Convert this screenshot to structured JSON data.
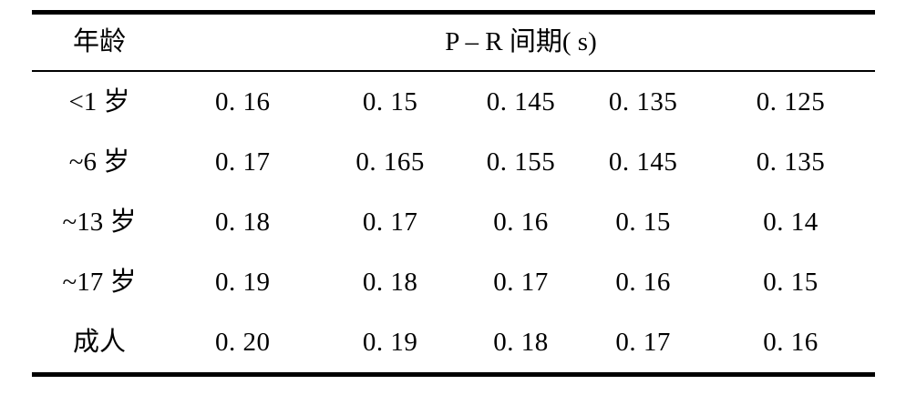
{
  "table": {
    "header": {
      "age_label": "年龄",
      "pr_label": "P – R 间期( s)"
    },
    "rows": [
      {
        "age": "<1 岁",
        "values": [
          "0. 16",
          "0. 15",
          "0. 145",
          "0. 135",
          "0. 125"
        ]
      },
      {
        "age": "~6 岁",
        "values": [
          "0. 17",
          "0. 165",
          "0. 155",
          "0. 145",
          "0. 135"
        ]
      },
      {
        "age": "~13 岁",
        "values": [
          "0. 18",
          "0. 17",
          "0. 16",
          "0. 15",
          "0. 14"
        ]
      },
      {
        "age": "~17 岁",
        "values": [
          "0. 19",
          "0. 18",
          "0. 17",
          "0. 16",
          "0. 15"
        ]
      },
      {
        "age": "成人",
        "values": [
          "0. 20",
          "0. 19",
          "0. 18",
          "0. 17",
          "0. 16"
        ]
      }
    ],
    "colors": {
      "text": "#000000",
      "background": "#ffffff",
      "rule": "#000000"
    }
  },
  "chart_data": {
    "type": "table",
    "title": "P – R 间期( s)",
    "row_header_label": "年龄",
    "categories": [
      "<1 岁",
      "~6 岁",
      "~13 岁",
      "~17 岁",
      "成人"
    ],
    "series": [
      {
        "name": "<1 岁",
        "values": [
          0.16,
          0.15,
          0.145,
          0.135,
          0.125
        ]
      },
      {
        "name": "~6 岁",
        "values": [
          0.17,
          0.165,
          0.155,
          0.145,
          0.135
        ]
      },
      {
        "name": "~13 岁",
        "values": [
          0.18,
          0.17,
          0.16,
          0.15,
          0.14
        ]
      },
      {
        "name": "~17 岁",
        "values": [
          0.19,
          0.18,
          0.17,
          0.16,
          0.15
        ]
      },
      {
        "name": "成人",
        "values": [
          0.2,
          0.19,
          0.18,
          0.17,
          0.16
        ]
      }
    ]
  }
}
